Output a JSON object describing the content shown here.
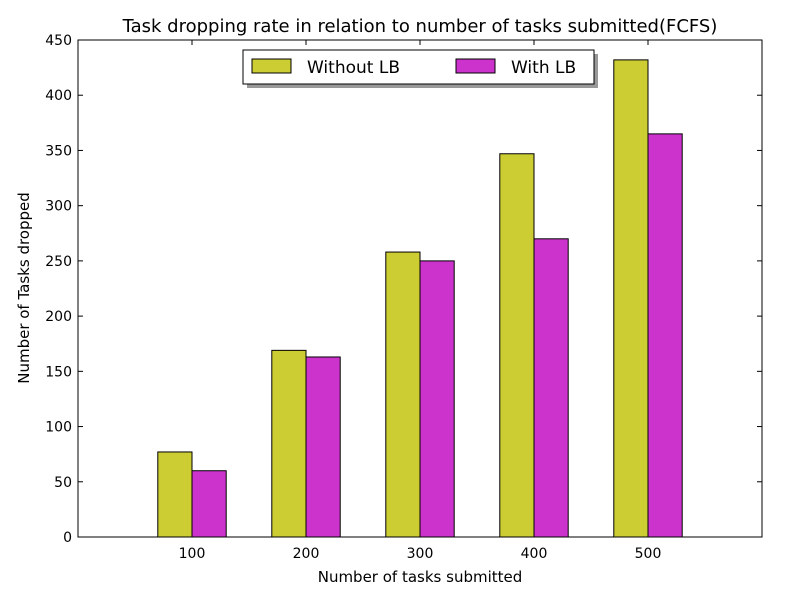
{
  "chart_data": {
    "type": "bar",
    "title": "Task dropping rate in relation to number of tasks submitted(FCFS)",
    "xlabel": "Number of tasks submitted",
    "ylabel": "Number of Tasks dropped",
    "categories": [
      "100",
      "200",
      "300",
      "400",
      "500"
    ],
    "series": [
      {
        "name": "Without LB",
        "color": "#cccc33",
        "values": [
          77,
          169,
          258,
          347,
          432
        ]
      },
      {
        "name": "With LB",
        "color": "#cc33cc",
        "values": [
          60,
          163,
          250,
          270,
          365
        ]
      }
    ],
    "ylim": [
      0,
      450
    ],
    "yticks": [
      0,
      50,
      100,
      150,
      200,
      250,
      300,
      350,
      400,
      450
    ],
    "grid": false,
    "legend_position": "top-center"
  }
}
